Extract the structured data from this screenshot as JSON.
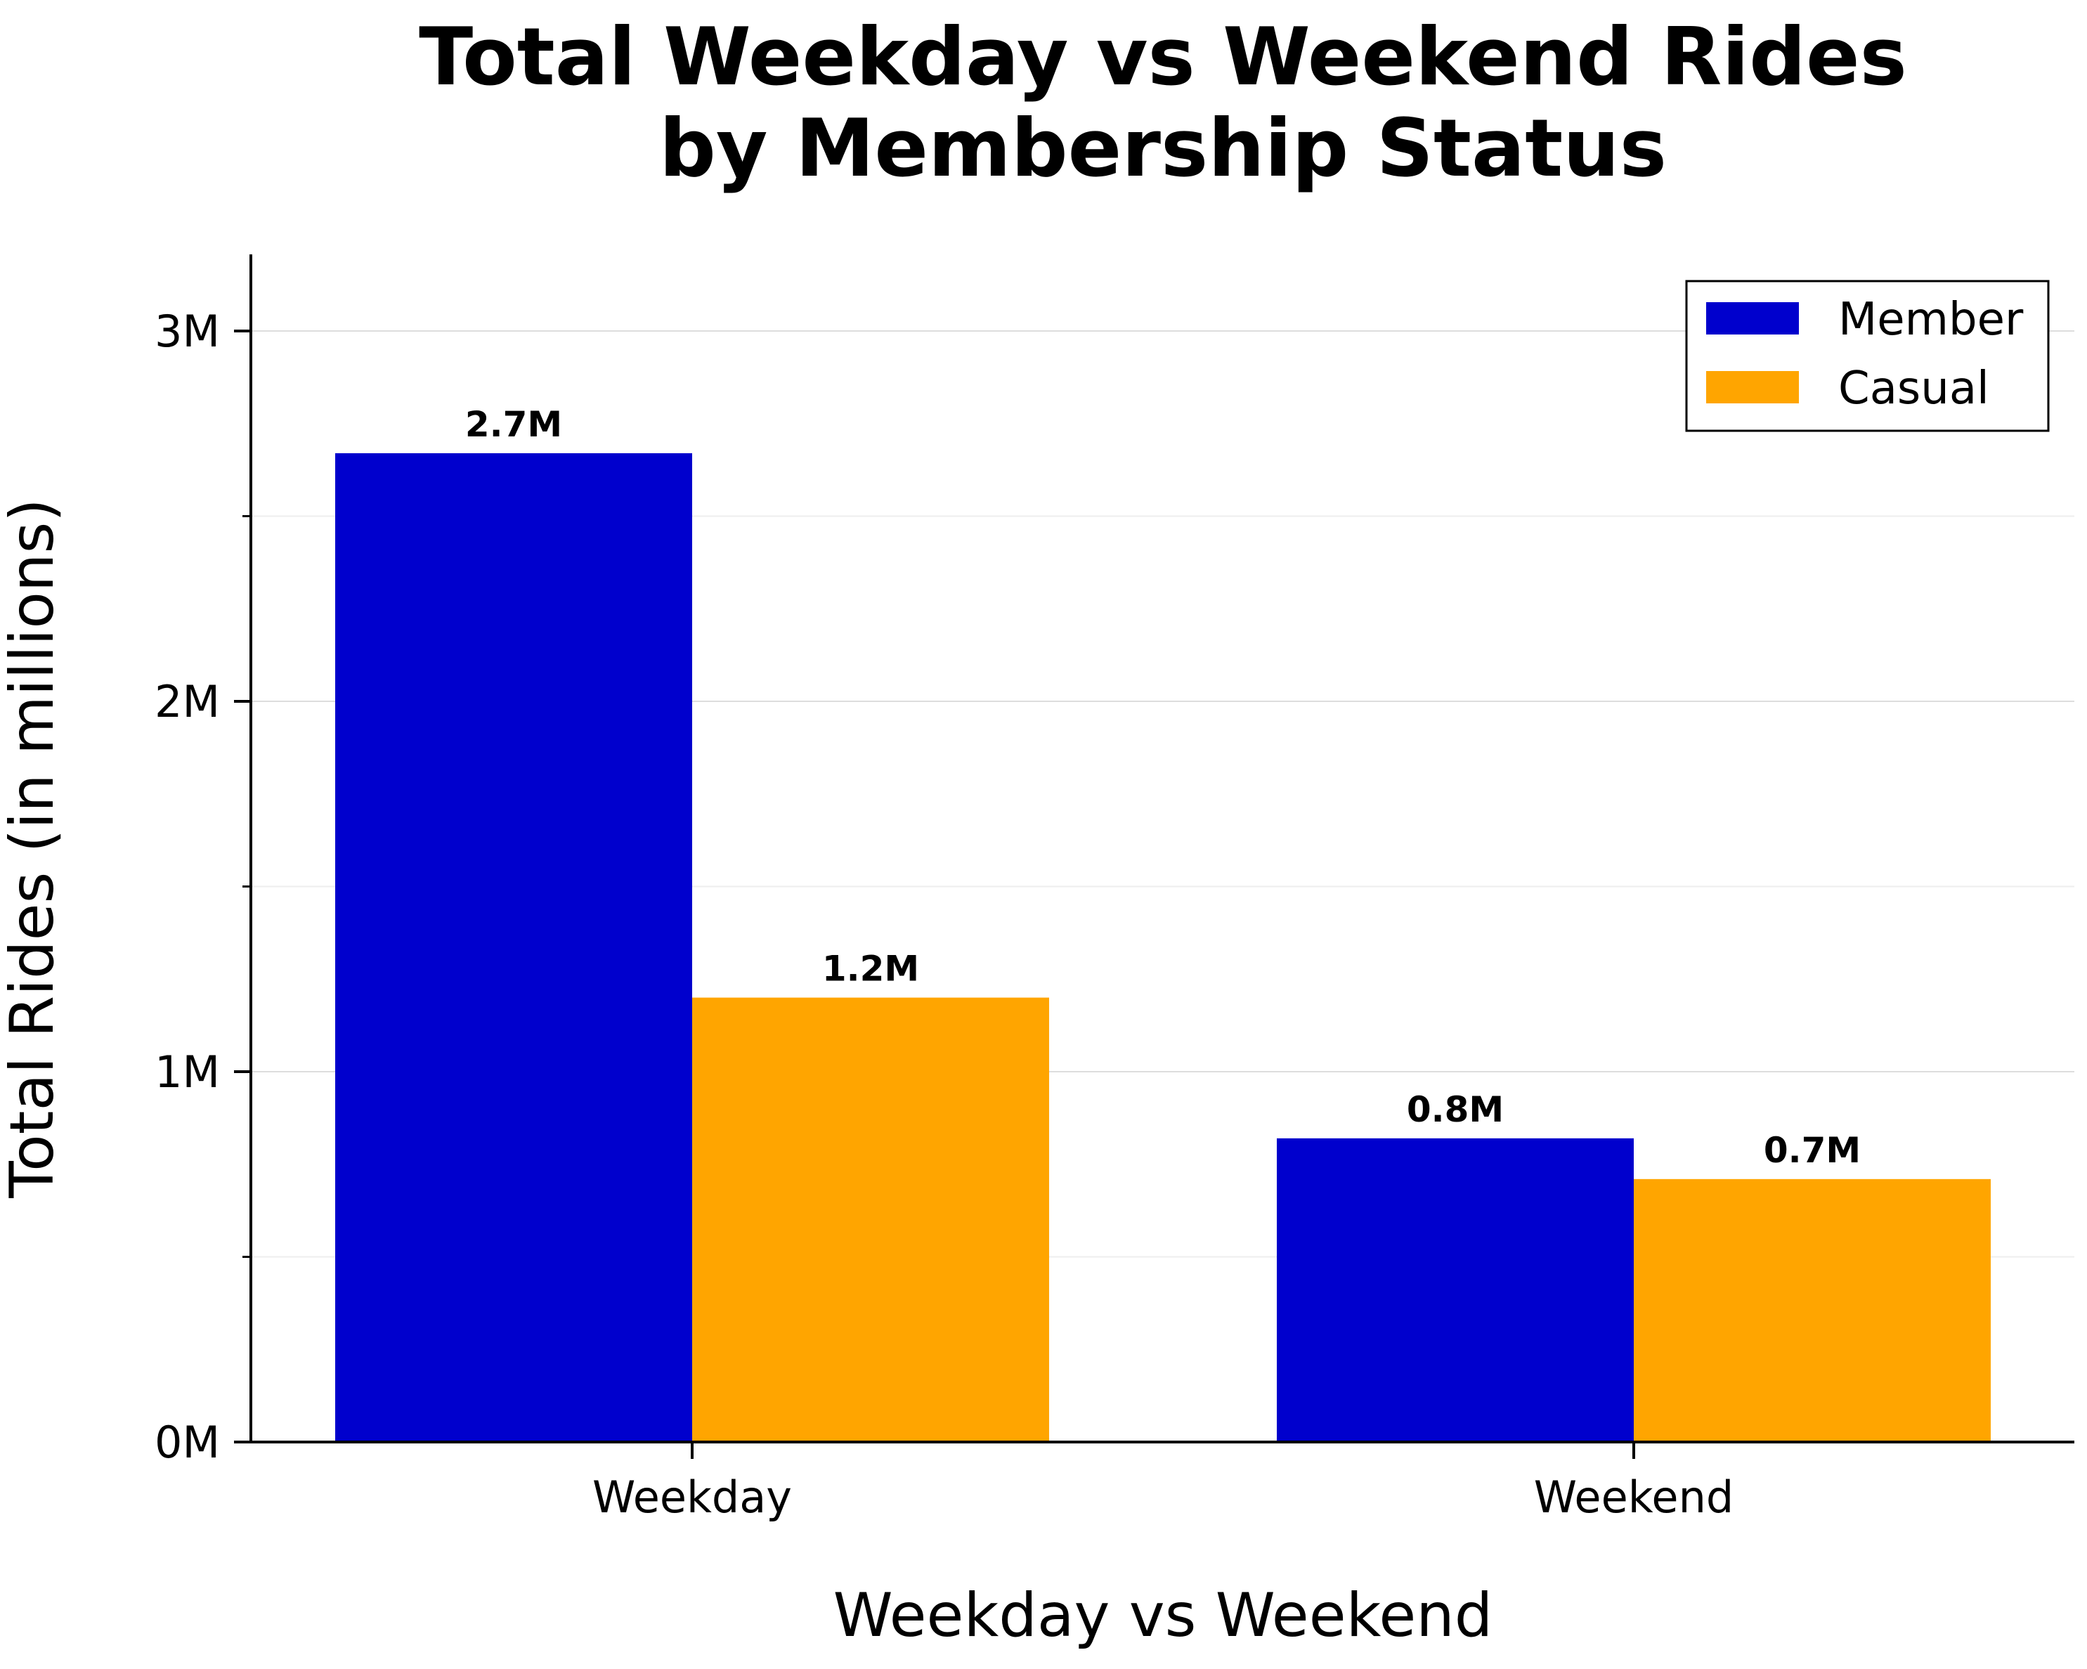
{
  "chart_data": {
    "type": "bar",
    "title_lines": [
      "Total Weekday vs Weekend Rides",
      "by Membership Status"
    ],
    "xlabel": "Weekday vs Weekend",
    "ylabel": "Total Rides (in millions)",
    "categories": [
      "Weekday",
      "Weekend"
    ],
    "series": [
      {
        "name": "Member",
        "color": "#0000CD",
        "values": [
          2.67,
          0.82
        ],
        "labels": [
          "2.7M",
          "0.8M"
        ]
      },
      {
        "name": "Casual",
        "color": "#FFA500",
        "values": [
          1.2,
          0.71
        ],
        "labels": [
          "1.2M",
          "0.7M"
        ]
      }
    ],
    "ylim": [
      0,
      3.2
    ],
    "yticks": [
      {
        "value": 0,
        "label": "0M"
      },
      {
        "value": 1,
        "label": "1M"
      },
      {
        "value": 2,
        "label": "2M"
      },
      {
        "value": 3,
        "label": "3M"
      }
    ],
    "minor_yticks": [
      0.5,
      1.5,
      2.5
    ],
    "grid": true,
    "legend_position": "top-right"
  }
}
